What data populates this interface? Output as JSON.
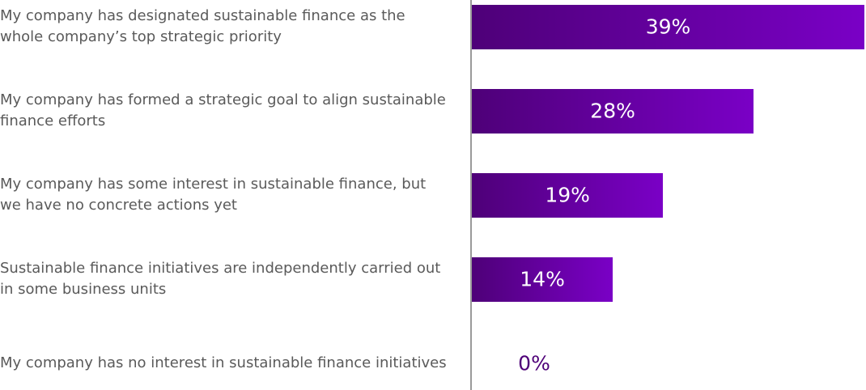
{
  "chart_data": {
    "type": "bar",
    "orientation": "horizontal",
    "categories": [
      "My company has designated sustainable finance as the whole company’s top strategic priority",
      "My company has formed a strategic goal to align sustainable finance efforts",
      "My company has some interest in sustainable finance, but we have no concrete actions yet",
      "Sustainable finance initiatives are independently carried out in some business units",
      "My company has no interest in sustainable finance initiatives"
    ],
    "values": [
      39,
      28,
      19,
      14,
      0
    ],
    "value_labels": [
      "39%",
      "28%",
      "19%",
      "14%",
      "0%"
    ],
    "color": [
      "#4e0078",
      "#7a00c6"
    ]
  }
}
